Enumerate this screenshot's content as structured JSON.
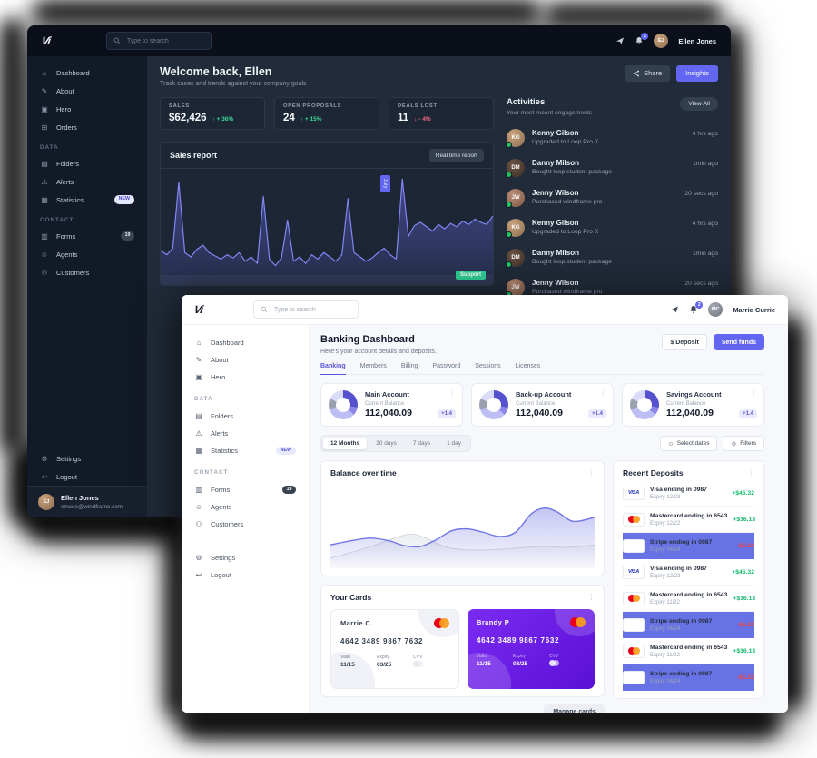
{
  "icons": {
    "home": "⌂",
    "about": "✎",
    "hero": "▣",
    "orders": "⊞",
    "folders": "▤",
    "alerts": "⚠",
    "statistics": "▦",
    "forms": "▥",
    "agents": "☺",
    "customers": "⚇",
    "settings": "⚙",
    "logout": "↩",
    "calendar": "⊙",
    "filter": "⚙",
    "kebab": "⋮"
  },
  "brands": {
    "visa": "VISA",
    "stripe": "stripe"
  },
  "dark": {
    "topbar": {
      "logo_text": "Vi",
      "search_placeholder": "Type to search",
      "bell_count": "2",
      "user_name": "Ellen Jones",
      "user_initials": "EJ"
    },
    "sidebar": {
      "items": [
        {
          "kind": "row",
          "icon": "home",
          "label": "Dashboard"
        },
        {
          "kind": "row",
          "icon": "about",
          "label": "About"
        },
        {
          "kind": "row",
          "icon": "hero",
          "label": "Hero"
        },
        {
          "kind": "row",
          "icon": "orders",
          "label": "Orders"
        },
        {
          "kind": "section",
          "label": "DATA",
          "interactable": false
        },
        {
          "kind": "row",
          "icon": "folders",
          "label": "Folders"
        },
        {
          "kind": "row",
          "icon": "alerts",
          "label": "Alerts"
        },
        {
          "kind": "row",
          "icon": "statistics",
          "label": "Statistics",
          "badge": "NEW",
          "badge_class": "badge-new"
        },
        {
          "kind": "section",
          "label": "CONTACT",
          "interactable": false
        },
        {
          "kind": "row",
          "icon": "forms",
          "label": "Forms",
          "badge": "19",
          "badge_class": "badge-count"
        },
        {
          "kind": "row",
          "icon": "agents",
          "label": "Agents"
        },
        {
          "kind": "row",
          "icon": "customers",
          "label": "Customers"
        }
      ],
      "footer_items": [
        {
          "kind": "row",
          "icon": "settings",
          "label": "Settings"
        },
        {
          "kind": "row",
          "icon": "logout",
          "label": "Logout"
        }
      ],
      "profile": {
        "name": "Ellen Jones",
        "email": "emcee@windframe.com",
        "initials": "EJ"
      }
    },
    "header": {
      "title": "Welcome back, Ellen",
      "subtitle": "Track cases and trends against your company goals",
      "share_label": "Share",
      "insights_label": "Insights"
    },
    "stats": [
      {
        "label": "SALES",
        "value": "$62,426",
        "arrow": "↑",
        "delta": "+ 36%",
        "sign": "pos"
      },
      {
        "label": "OPEN PROPOSALS",
        "value": "24",
        "arrow": "↑",
        "delta": "+ 15%",
        "sign": "pos"
      },
      {
        "label": "DEALS LOST",
        "value": "11",
        "arrow": "↓",
        "delta": "- 4%",
        "sign": "neg"
      }
    ],
    "sales_report": {
      "title": "Sales report",
      "button_label": "Real time report",
      "tooltip": "July",
      "badge": "Support"
    },
    "activities": {
      "title": "Activities",
      "subtitle": "Your most recent engagements",
      "view_all_label": "View All",
      "items": [
        {
          "initials": "KG",
          "avatar_class": "av1",
          "name": "Kenny Gilson",
          "desc": "Upgraded to Loop Pro X",
          "time": "4 hrs ago"
        },
        {
          "initials": "DM",
          "avatar_class": "av2",
          "name": "Danny Milson",
          "desc": "Bought loop student package",
          "time": "1min ago"
        },
        {
          "initials": "JW",
          "avatar_class": "av3",
          "name": "Jenny Wilson",
          "desc": "Purchased windframe pro",
          "time": "20 secs ago"
        },
        {
          "initials": "KG",
          "avatar_class": "av1",
          "name": "Kenny Gilson",
          "desc": "Upgraded to Loop Pro X",
          "time": "4 hrs ago"
        },
        {
          "initials": "DM",
          "avatar_class": "av2",
          "name": "Danny Milson",
          "desc": "Bought loop student package",
          "time": "1min ago"
        },
        {
          "initials": "JW",
          "avatar_class": "av3",
          "name": "Jenny Wilson",
          "desc": "Purchased windframe pro",
          "time": "20 secs ago"
        }
      ]
    }
  },
  "light": {
    "topbar": {
      "logo_text": "Vi",
      "search_placeholder": "Type to search",
      "bell_count": "2",
      "user_name": "Marrie Currie",
      "user_initials": "MC"
    },
    "sidebar": {
      "items": [
        {
          "kind": "row",
          "icon": "home",
          "label": "Dashboard"
        },
        {
          "kind": "row",
          "icon": "about",
          "label": "About"
        },
        {
          "kind": "row",
          "icon": "hero",
          "label": "Hero"
        },
        {
          "kind": "section",
          "label": "DATA",
          "interactable": false
        },
        {
          "kind": "row",
          "icon": "folders",
          "label": "Folders"
        },
        {
          "kind": "row",
          "icon": "alerts",
          "label": "Alerts"
        },
        {
          "kind": "row",
          "icon": "statistics",
          "label": "Statistics",
          "badge": "NEW",
          "badge_class": "badge-new"
        },
        {
          "kind": "section",
          "label": "CONTACT",
          "interactable": false
        },
        {
          "kind": "row",
          "icon": "forms",
          "label": "Forms",
          "badge": "19",
          "badge_class": "badge-count"
        },
        {
          "kind": "row",
          "icon": "agents",
          "label": "Agents"
        },
        {
          "kind": "row",
          "icon": "customers",
          "label": "Customers"
        }
      ],
      "footer_items": [
        {
          "kind": "row",
          "icon": "settings",
          "label": "Settings"
        },
        {
          "kind": "row",
          "icon": "logout",
          "label": "Logout"
        }
      ]
    },
    "header": {
      "title": "Banking Dashboard",
      "subtitle": "Here's your account details and deposits.",
      "deposit_label": "$ Deposit",
      "send_label": "Send funds"
    },
    "tabs": [
      {
        "label": "Banking",
        "state": "active"
      },
      {
        "label": "Members"
      },
      {
        "label": "Billing"
      },
      {
        "label": "Password"
      },
      {
        "label": "Sessions"
      },
      {
        "label": "Licenses"
      }
    ],
    "accounts": [
      {
        "name": "Main Account",
        "balance_label": "Current Balance",
        "balance": "112,040.09",
        "delta": "+1.4"
      },
      {
        "name": "Back-up Account",
        "balance_label": "Current Balance",
        "balance": "112,040.09",
        "delta": "+1.4"
      },
      {
        "name": "Savings Account",
        "balance_label": "Current Balance",
        "balance": "112,040.09",
        "delta": "+1.4"
      }
    ],
    "donut_segments": [
      [
        "#5651cf",
        28
      ],
      [
        "#8b87e8",
        9
      ],
      [
        "#bdbff4",
        33
      ],
      [
        "#9aa1ae",
        12
      ],
      [
        "#d9dbf9",
        18
      ]
    ],
    "filters": {
      "ranges": [
        {
          "label": "12 Months",
          "state": "active"
        },
        {
          "label": "30 days"
        },
        {
          "label": "7 days"
        },
        {
          "label": "1 day"
        }
      ],
      "select_dates_label": "Select dates",
      "filters_label": "Filters"
    },
    "balance_chart": {
      "title": "Balance over time"
    },
    "deposits": {
      "title": "Recent Deposits",
      "items": [
        {
          "brand_class": "brand-visa",
          "name": "Visa ending in 0987",
          "expiry": "Expiry 12/23",
          "amount": "+$45.32",
          "sign": "pos"
        },
        {
          "brand_class": "brand-mastercard",
          "name": "Mastercard ending in 6543",
          "expiry": "Expiry 12/22",
          "amount": "+$16.13",
          "sign": "pos"
        },
        {
          "brand_class": "brand-stripe",
          "name": "Stripe ending in 0987",
          "expiry": "Expiry 04/24",
          "amount": "-$5.23",
          "sign": "neg"
        },
        {
          "brand_class": "brand-visa",
          "name": "Visa ending in 0987",
          "expiry": "Expiry 12/23",
          "amount": "+$45.32",
          "sign": "pos"
        },
        {
          "brand_class": "brand-mastercard",
          "name": "Mastercard ending in 6543",
          "expiry": "Expiry 11/22",
          "amount": "+$16.13",
          "sign": "pos"
        },
        {
          "brand_class": "brand-stripe",
          "name": "Stripe ending in 0987",
          "expiry": "Expiry 04/24",
          "amount": "-$5.23",
          "sign": "neg"
        },
        {
          "brand_class": "brand-mastercard",
          "name": "Mastercard ending in 6543",
          "expiry": "Expiry 11/22",
          "amount": "+$16.13",
          "sign": "pos"
        },
        {
          "brand_class": "brand-stripe",
          "name": "Stripe ending in 0987",
          "expiry": "Expiry 04/24",
          "amount": "-$5.23",
          "sign": "neg"
        }
      ]
    },
    "cards": {
      "title": "Your Cards",
      "manage_label": "Manage cards",
      "items": [
        {
          "theme": "card-light",
          "holder": "Marrie C",
          "number": "4642 3489 9867 7632",
          "valid_label": "Valid",
          "valid": "11/15",
          "expiry_label": "Expiry",
          "expiry": "03/25",
          "cvv_label": "CVV"
        },
        {
          "theme": "card-purple",
          "holder": "Brandy P",
          "number": "4642 3489 9867 7632",
          "valid_label": "Valid",
          "valid": "11/15",
          "expiry_label": "Expiry",
          "expiry": "03/25",
          "cvv_label": "CVV"
        }
      ]
    }
  },
  "chart_data": [
    {
      "type": "line",
      "title": "Sales report",
      "ylim": [
        0,
        100
      ],
      "color": "#8286f4",
      "grid": false,
      "values": [
        32,
        28,
        34,
        95,
        30,
        26,
        33,
        37,
        30,
        27,
        24,
        28,
        25,
        30,
        22,
        26,
        20,
        82,
        24,
        18,
        25,
        60,
        22,
        26,
        20,
        28,
        24,
        30,
        26,
        22,
        28,
        80,
        30,
        26,
        22,
        25,
        30,
        34,
        28,
        24,
        98,
        45,
        55,
        58,
        54,
        50,
        56,
        52,
        57,
        54,
        59,
        56,
        61,
        58,
        56,
        64
      ]
    },
    {
      "type": "area",
      "title": "Balance over time",
      "xlim": [
        0,
        100
      ],
      "ylim": [
        0,
        100
      ],
      "grid": false,
      "series": [
        {
          "name": "balance",
          "points": [
            [
              0,
              28
            ],
            [
              8,
              33
            ],
            [
              15,
              36
            ],
            [
              22,
              33
            ],
            [
              28,
              27
            ],
            [
              34,
              26
            ],
            [
              40,
              34
            ],
            [
              46,
              45
            ],
            [
              52,
              47
            ],
            [
              58,
              43
            ],
            [
              64,
              38
            ],
            [
              70,
              43
            ],
            [
              76,
              65
            ],
            [
              81,
              72
            ],
            [
              86,
              67
            ],
            [
              92,
              56
            ],
            [
              100,
              61
            ]
          ]
        },
        {
          "name": "previous",
          "points": [
            [
              0,
              12
            ],
            [
              9,
              20
            ],
            [
              17,
              28
            ],
            [
              25,
              37
            ],
            [
              31,
              41
            ],
            [
              37,
              35
            ],
            [
              44,
              25
            ],
            [
              52,
              22
            ],
            [
              60,
              22
            ],
            [
              70,
              24
            ],
            [
              80,
              26
            ],
            [
              90,
              25
            ],
            [
              100,
              28
            ]
          ]
        }
      ]
    }
  ]
}
